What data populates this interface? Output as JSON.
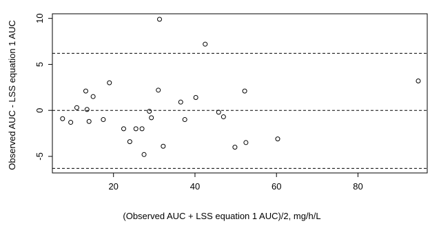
{
  "chart_data": {
    "type": "scatter",
    "title": "",
    "xlabel": "(Observed AUC + LSS equation 1 AUC)/2, mg/h/L",
    "ylabel": "Observed AUC - LSS equation 1 AUC",
    "xlim": [
      5,
      97
    ],
    "ylim": [
      -6.8,
      10.5
    ],
    "xticks": [
      20,
      40,
      60,
      80
    ],
    "yticks": [
      -5,
      0,
      5,
      10
    ],
    "grid": false,
    "legend": "none",
    "reference_lines": [
      6.2,
      0,
      -6.3
    ],
    "point_color": "#000000",
    "points": [
      {
        "x": 7.5,
        "y": -0.9
      },
      {
        "x": 9.5,
        "y": -1.3
      },
      {
        "x": 11,
        "y": 0.3
      },
      {
        "x": 13.2,
        "y": 2.1
      },
      {
        "x": 13.5,
        "y": 0.1
      },
      {
        "x": 14,
        "y": -1.2
      },
      {
        "x": 15,
        "y": 1.5
      },
      {
        "x": 17.5,
        "y": -1
      },
      {
        "x": 19,
        "y": 3
      },
      {
        "x": 22.5,
        "y": -2
      },
      {
        "x": 24,
        "y": -3.4
      },
      {
        "x": 25.5,
        "y": -2
      },
      {
        "x": 27,
        "y": -2
      },
      {
        "x": 27.5,
        "y": -4.8
      },
      {
        "x": 28.8,
        "y": -0.1
      },
      {
        "x": 29.3,
        "y": -0.8
      },
      {
        "x": 31,
        "y": 2.2
      },
      {
        "x": 31.3,
        "y": 9.9
      },
      {
        "x": 32.2,
        "y": -3.9
      },
      {
        "x": 36.5,
        "y": 0.9
      },
      {
        "x": 37.5,
        "y": -1
      },
      {
        "x": 40.2,
        "y": 1.4
      },
      {
        "x": 42.5,
        "y": 7.2
      },
      {
        "x": 45.8,
        "y": -0.2
      },
      {
        "x": 47,
        "y": -0.7
      },
      {
        "x": 49.8,
        "y": -4
      },
      {
        "x": 52.2,
        "y": 2.1
      },
      {
        "x": 52.5,
        "y": -3.5
      },
      {
        "x": 60.3,
        "y": -3.1
      },
      {
        "x": 94.8,
        "y": 3.2
      }
    ]
  }
}
